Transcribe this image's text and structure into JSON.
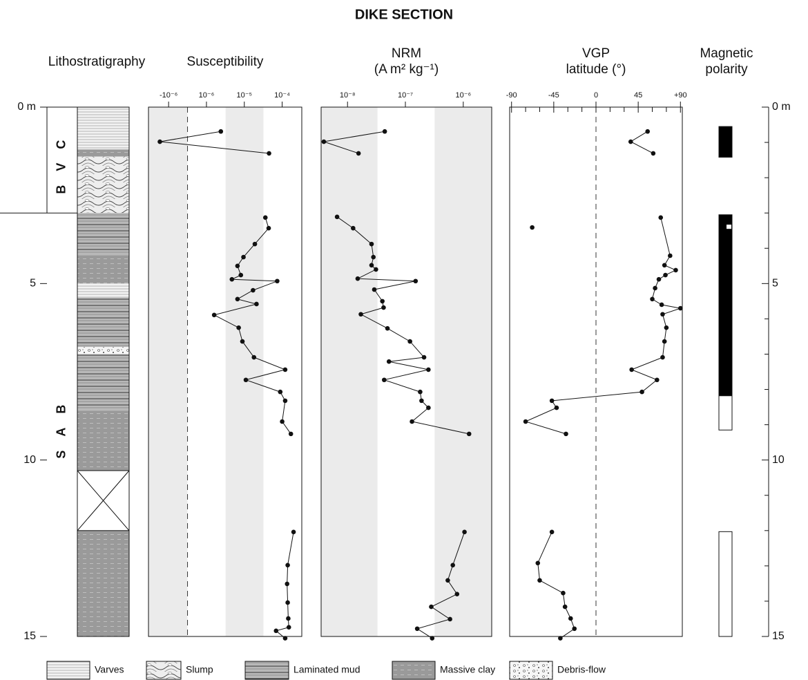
{
  "title": "DIKE SECTION",
  "depth_axis": {
    "ylim": [
      0,
      15
    ],
    "yticks": [
      {
        "value": 0,
        "label": "0 m"
      },
      5,
      10,
      15
    ],
    "yminorticks": [
      1,
      2,
      3,
      4,
      6,
      7,
      8,
      9,
      11,
      12,
      13,
      14
    ]
  },
  "lithostratigraphy": {
    "title": "Lithostratigraphy",
    "units": [
      {
        "label": "BVC",
        "top": 0,
        "bottom": 3.0
      },
      {
        "label": "SAB",
        "top": 3.0,
        "bottom": 15
      }
    ],
    "layers": [
      {
        "top": 0,
        "bottom": 1.2,
        "pattern": "varves"
      },
      {
        "top": 1.2,
        "bottom": 1.4,
        "pattern": "massive"
      },
      {
        "top": 1.4,
        "bottom": 3.0,
        "pattern": "slump"
      },
      {
        "top": 3.0,
        "bottom": 4.2,
        "pattern": "laminated"
      },
      {
        "top": 4.2,
        "bottom": 5.0,
        "pattern": "massive"
      },
      {
        "top": 5.0,
        "bottom": 5.4,
        "pattern": "varves"
      },
      {
        "top": 5.4,
        "bottom": 6.8,
        "pattern": "laminated"
      },
      {
        "top": 6.8,
        "bottom": 7.0,
        "pattern": "debris"
      },
      {
        "top": 7.0,
        "bottom": 8.6,
        "pattern": "laminated"
      },
      {
        "top": 8.6,
        "bottom": 10.3,
        "pattern": "massive"
      },
      {
        "top": 12.0,
        "bottom": 15.0,
        "pattern": "massive"
      }
    ],
    "gap": [
      10.3,
      12.0
    ]
  },
  "chart_data": [
    {
      "type": "line",
      "title": "Susceptibility",
      "xscale": "symlog",
      "linthresh": 1e-06,
      "linscale": 0.5,
      "xlim": [
        -3.4e-06,
        0.00033
      ],
      "xticks": [
        {
          "value": -1e-06,
          "label": "-10⁻⁶"
        },
        {
          "value": 1e-06,
          "label": "10⁻⁶"
        },
        {
          "value": 1e-05,
          "label": "10⁻⁵"
        },
        {
          "value": 0.0001,
          "label": "10⁻⁴"
        }
      ],
      "zero_line": true,
      "shaded": [
        [
          -3.4e-06,
          0
        ],
        [
          3.2e-06,
          3.2e-05
        ]
      ],
      "shade_color": "#ebebeb",
      "color": "#111",
      "depth": [
        0.69,
        0.98,
        1.31,
        null,
        3.13,
        3.43,
        3.88,
        4.25,
        4.5,
        4.76,
        4.88,
        4.93,
        5.19,
        5.44,
        5.58,
        5.89,
        6.25,
        6.64,
        7.09,
        7.44,
        7.73,
        8.07,
        8.32,
        8.91,
        9.26,
        null,
        12.04,
        12.98,
        13.51,
        14.04,
        14.49,
        14.74,
        14.84,
        15.05
      ],
      "values": [
        2.4e-06,
        -1.7e-06,
        4.5e-05,
        null,
        3.6e-05,
        4.4e-05,
        1.9e-05,
        9.5e-06,
        6.6e-06,
        8.1e-06,
        4.7e-06,
        7.4e-05,
        1.7e-05,
        6.6e-06,
        2.1e-05,
        1.6e-06,
        7.1e-06,
        8.9e-06,
        1.8e-05,
        0.00012,
        1.1e-05,
        8.9e-05,
        0.00012,
        0.0001,
        0.00017,
        null,
        0.0002,
        0.00014,
        0.000135,
        0.00014,
        0.000145,
        0.00015,
        6.9e-05,
        0.00012
      ]
    },
    {
      "type": "line",
      "title": "NRM",
      "subtitle": "(A m² kg⁻¹)",
      "xscale": "log",
      "xlim": [
        3.5e-09,
        3.1e-06
      ],
      "xticks": [
        {
          "value": 1e-08,
          "label": "10⁻⁸"
        },
        {
          "value": 1e-07,
          "label": "10⁻⁷"
        },
        {
          "value": 1e-06,
          "label": "10⁻⁶"
        }
      ],
      "zero_line": false,
      "shaded": [
        [
          3.5e-09,
          3.3e-08
        ],
        [
          3.2e-07,
          3.1e-06
        ]
      ],
      "shade_color": "#ebebeb",
      "color": "#111",
      "depth": [
        0.69,
        0.98,
        1.31,
        null,
        3.11,
        3.43,
        3.88,
        4.25,
        4.48,
        4.6,
        4.86,
        4.93,
        5.17,
        5.5,
        5.68,
        5.87,
        6.27,
        6.64,
        7.09,
        7.21,
        7.44,
        7.73,
        8.07,
        8.32,
        8.52,
        8.91,
        9.26,
        null,
        12.04,
        12.98,
        13.41,
        13.8,
        14.16,
        14.51,
        14.78,
        15.05
      ],
      "values": [
        4.4e-08,
        3.9e-09,
        1.55e-08,
        null,
        6.6e-09,
        1.25e-08,
        2.6e-08,
        2.8e-08,
        2.6e-08,
        3.1e-08,
        1.5e-08,
        1.5e-07,
        2.9e-08,
        4e-08,
        4.2e-08,
        1.7e-08,
        4.9e-08,
        1.2e-07,
        2.1e-07,
        5.2e-08,
        2.5e-07,
        4.3e-08,
        1.8e-07,
        1.9e-07,
        2.5e-07,
        1.3e-07,
        1.26e-06,
        null,
        1.05e-06,
        6.6e-07,
        5.4e-07,
        7.8e-07,
        2.8e-07,
        5.9e-07,
        1.6e-07,
        2.9e-07
      ]
    },
    {
      "type": "line",
      "title": "VGP",
      "subtitle": "latitude (°)",
      "xscale": "linear",
      "xlim": [
        -92,
        92
      ],
      "xticks": [
        -90,
        -45,
        0,
        45,
        {
          "value": 90,
          "label": "+90"
        }
      ],
      "xminorticks": [
        -75,
        -60,
        -30,
        -15,
        15,
        30,
        60,
        75
      ],
      "zero_line": true,
      "shaded": [],
      "shade_color": "#ebebeb",
      "color": "#111",
      "depth": [
        0.69,
        0.98,
        1.31,
        null,
        3.41,
        null,
        3.13,
        4.21,
        4.48,
        4.62,
        4.76,
        4.88,
        5.13,
        5.44,
        5.6,
        5.7,
        5.87,
        6.25,
        6.64,
        7.09,
        7.44,
        7.73,
        8.07,
        8.32,
        8.52,
        8.91,
        9.26,
        null,
        12.04,
        12.92,
        13.41,
        13.77,
        14.16,
        14.49,
        14.78,
        15.05
      ],
      "values": [
        55,
        37,
        61,
        null,
        -68,
        null,
        69,
        79,
        73,
        85,
        74,
        67,
        63,
        60,
        70,
        90,
        71,
        75,
        73,
        71,
        38,
        65,
        49,
        -47,
        -42,
        -75,
        -32,
        null,
        -47,
        -62,
        -60,
        -35,
        -33,
        -27,
        -23,
        -38
      ]
    }
  ],
  "magnetic_polarity": {
    "title": [
      "Magnetic",
      "polarity"
    ],
    "intervals": [
      {
        "top": 0.55,
        "bottom": 1.42,
        "fill": "#000000"
      },
      {
        "top": 3.05,
        "bottom": 8.18,
        "fill": "#000000"
      },
      {
        "top": 3.33,
        "bottom": 3.45,
        "fill": "#ffffff"
      },
      {
        "top": 8.18,
        "bottom": 9.15,
        "fill": "#ffffff"
      },
      {
        "top": 12.03,
        "bottom": 15.0,
        "fill": "#ffffff"
      }
    ]
  },
  "legend": [
    {
      "label": "Varves",
      "pattern": "varves"
    },
    {
      "label": "Slump",
      "pattern": "slump"
    },
    {
      "label": "Laminated mud",
      "pattern": "laminated"
    },
    {
      "label": "Massive clay",
      "pattern": "massive"
    },
    {
      "label": "Debris-flow",
      "pattern": "debris"
    }
  ]
}
